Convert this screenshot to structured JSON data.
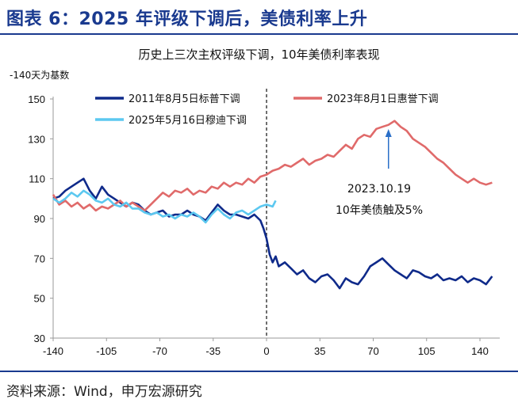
{
  "header": {
    "title": "图表 6：2025 年评级下调后，美债利率上升"
  },
  "footer": {
    "source": "资料来源：Wind，申万宏源研究"
  },
  "chart_data": {
    "type": "line",
    "title": "历史上三次主权评级下调，10年美债利率表现",
    "ylabel": "-140天为基数",
    "xlim": [
      -140,
      153
    ],
    "ylim": [
      30,
      150
    ],
    "xticks": [
      -140,
      -105,
      -70,
      -35,
      0,
      35,
      70,
      105,
      140
    ],
    "yticks": [
      30,
      50,
      70,
      90,
      110,
      130,
      150
    ],
    "grid": false,
    "legend_position": "top",
    "event_line_x": 0,
    "series": [
      {
        "name": "2011年8月5日标普下调",
        "color": "#0f2a8a",
        "x": [
          -140,
          -136,
          -132,
          -128,
          -124,
          -120,
          -116,
          -112,
          -108,
          -104,
          -100,
          -96,
          -92,
          -88,
          -84,
          -80,
          -76,
          -72,
          -68,
          -64,
          -60,
          -56,
          -52,
          -48,
          -44,
          -40,
          -36,
          -32,
          -28,
          -24,
          -20,
          -16,
          -12,
          -8,
          -4,
          -2,
          0,
          2,
          4,
          6,
          8,
          12,
          16,
          20,
          24,
          28,
          32,
          36,
          40,
          44,
          48,
          52,
          56,
          60,
          64,
          68,
          72,
          76,
          80,
          84,
          88,
          92,
          96,
          100,
          104,
          108,
          112,
          116,
          120,
          124,
          128,
          132,
          136,
          140,
          144,
          148
        ],
        "values": [
          100,
          101,
          104,
          106,
          108,
          110,
          104,
          100,
          106,
          102,
          100,
          98,
          96,
          98,
          97,
          94,
          92,
          93,
          94,
          91,
          92,
          92,
          94,
          92,
          91,
          89,
          93,
          97,
          94,
          92,
          92,
          91,
          90,
          92,
          89,
          85,
          80,
          72,
          68,
          71,
          66,
          68,
          65,
          62,
          64,
          60,
          58,
          61,
          62,
          59,
          55,
          60,
          58,
          57,
          61,
          66,
          68,
          70,
          67,
          64,
          62,
          60,
          64,
          63,
          61,
          60,
          62,
          59,
          60,
          59,
          61,
          58,
          60,
          59,
          57,
          61
        ]
      },
      {
        "name": "2023年8月1日惠誉下调",
        "color": "#e06a6a",
        "x": [
          -140,
          -136,
          -132,
          -128,
          -124,
          -120,
          -116,
          -112,
          -108,
          -104,
          -100,
          -96,
          -92,
          -88,
          -84,
          -80,
          -76,
          -72,
          -68,
          -64,
          -60,
          -56,
          -52,
          -48,
          -44,
          -40,
          -36,
          -32,
          -28,
          -24,
          -20,
          -16,
          -12,
          -8,
          -4,
          0,
          4,
          8,
          12,
          16,
          20,
          24,
          28,
          32,
          36,
          40,
          44,
          48,
          52,
          56,
          60,
          64,
          68,
          72,
          76,
          80,
          84,
          88,
          92,
          96,
          100,
          104,
          108,
          112,
          116,
          120,
          124,
          128,
          132,
          136,
          140,
          144,
          148
        ],
        "values": [
          102,
          97,
          99,
          96,
          98,
          95,
          97,
          94,
          96,
          95,
          97,
          99,
          96,
          98,
          96,
          94,
          97,
          100,
          103,
          101,
          104,
          103,
          105,
          102,
          104,
          103,
          106,
          105,
          108,
          106,
          108,
          107,
          110,
          108,
          111,
          112,
          114,
          115,
          117,
          116,
          118,
          120,
          117,
          119,
          120,
          122,
          121,
          124,
          127,
          125,
          130,
          132,
          131,
          135,
          136,
          137,
          139,
          136,
          134,
          130,
          128,
          126,
          123,
          120,
          118,
          115,
          112,
          110,
          108,
          110,
          108,
          107,
          108
        ]
      },
      {
        "name": "2025年5月16日穆迪下调",
        "color": "#5cc8f0",
        "x": [
          -140,
          -136,
          -132,
          -128,
          -124,
          -120,
          -116,
          -112,
          -108,
          -104,
          -100,
          -96,
          -92,
          -88,
          -84,
          -80,
          -76,
          -72,
          -68,
          -64,
          -60,
          -56,
          -52,
          -48,
          -44,
          -40,
          -36,
          -32,
          -28,
          -24,
          -20,
          -16,
          -12,
          -8,
          -4,
          0,
          4,
          6
        ],
        "values": [
          100,
          98,
          100,
          103,
          101,
          104,
          102,
          99,
          98,
          100,
          97,
          96,
          98,
          95,
          95,
          93,
          92,
          93,
          91,
          92,
          90,
          92,
          91,
          93,
          91,
          88,
          92,
          95,
          92,
          90,
          93,
          94,
          92,
          94,
          96,
          97,
          96,
          99
        ]
      }
    ],
    "annotations": [
      {
        "text": "2023.10.19",
        "x": 80,
        "y": 118
      },
      {
        "text": "10年美债触及5%",
        "x": 80,
        "y": 108
      }
    ]
  }
}
